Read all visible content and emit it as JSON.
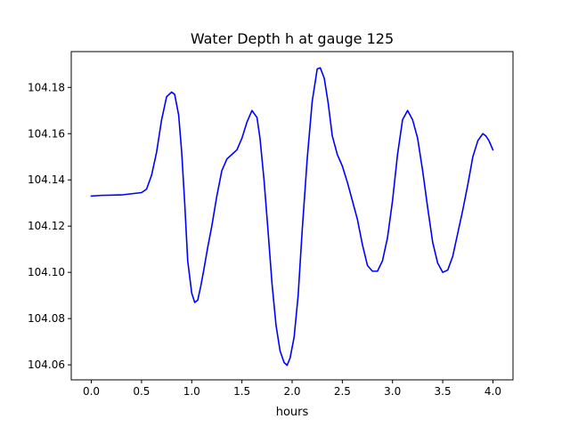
{
  "chart_data": {
    "type": "line",
    "title": "Water Depth h at gauge 125",
    "xlabel": "hours",
    "ylabel": "",
    "xlim": [
      -0.2,
      4.2
    ],
    "ylim": [
      104.0535,
      104.1955
    ],
    "xticks": [
      {
        "value": 0.0,
        "label": "0.0"
      },
      {
        "value": 0.5,
        "label": "0.5"
      },
      {
        "value": 1.0,
        "label": "1.0"
      },
      {
        "value": 1.5,
        "label": "1.5"
      },
      {
        "value": 2.0,
        "label": "2.0"
      },
      {
        "value": 2.5,
        "label": "2.5"
      },
      {
        "value": 3.0,
        "label": "3.0"
      },
      {
        "value": 3.5,
        "label": "3.5"
      },
      {
        "value": 4.0,
        "label": "4.0"
      }
    ],
    "yticks": [
      {
        "value": 104.06,
        "label": "104.06"
      },
      {
        "value": 104.08,
        "label": "104.08"
      },
      {
        "value": 104.1,
        "label": "104.10"
      },
      {
        "value": 104.12,
        "label": "104.12"
      },
      {
        "value": 104.14,
        "label": "104.14"
      },
      {
        "value": 104.16,
        "label": "104.16"
      },
      {
        "value": 104.18,
        "label": "104.18"
      }
    ],
    "grid": false,
    "series": [
      {
        "color": "#0000ff",
        "x": [
          0.0,
          0.1,
          0.3,
          0.5,
          0.55,
          0.6,
          0.65,
          0.7,
          0.75,
          0.8,
          0.83,
          0.87,
          0.9,
          0.93,
          0.96,
          1.0,
          1.03,
          1.06,
          1.09,
          1.12,
          1.16,
          1.2,
          1.25,
          1.3,
          1.35,
          1.4,
          1.45,
          1.5,
          1.55,
          1.6,
          1.65,
          1.68,
          1.72,
          1.76,
          1.8,
          1.84,
          1.88,
          1.92,
          1.95,
          1.98,
          2.02,
          2.06,
          2.1,
          2.15,
          2.2,
          2.25,
          2.28,
          2.32,
          2.36,
          2.4,
          2.45,
          2.5,
          2.55,
          2.6,
          2.65,
          2.7,
          2.75,
          2.8,
          2.85,
          2.9,
          2.95,
          3.0,
          3.05,
          3.1,
          3.15,
          3.2,
          3.25,
          3.3,
          3.35,
          3.4,
          3.45,
          3.5,
          3.55,
          3.6,
          3.65,
          3.7,
          3.75,
          3.8,
          3.85,
          3.9,
          3.93,
          3.96,
          4.0
        ],
        "y": [
          104.133,
          104.1333,
          104.1335,
          104.1345,
          104.136,
          104.142,
          104.152,
          104.166,
          104.176,
          104.178,
          104.177,
          104.168,
          104.152,
          104.13,
          104.105,
          104.091,
          104.087,
          104.088,
          104.094,
          104.101,
          104.111,
          104.12,
          104.133,
          104.144,
          104.149,
          104.151,
          104.153,
          104.158,
          104.165,
          104.17,
          104.167,
          104.158,
          104.14,
          104.118,
          104.095,
          104.077,
          104.066,
          104.061,
          104.0598,
          104.063,
          104.072,
          104.09,
          104.118,
          104.149,
          104.174,
          104.188,
          104.1885,
          104.184,
          104.173,
          104.159,
          104.151,
          104.146,
          104.139,
          104.131,
          104.123,
          104.112,
          104.103,
          104.1005,
          104.1005,
          104.105,
          104.115,
          104.131,
          104.151,
          104.166,
          104.17,
          104.166,
          104.158,
          104.144,
          104.128,
          104.113,
          104.104,
          104.1,
          104.101,
          104.107,
          104.117,
          104.127,
          104.138,
          104.15,
          104.157,
          104.16,
          104.159,
          104.157,
          104.153
        ]
      }
    ]
  }
}
